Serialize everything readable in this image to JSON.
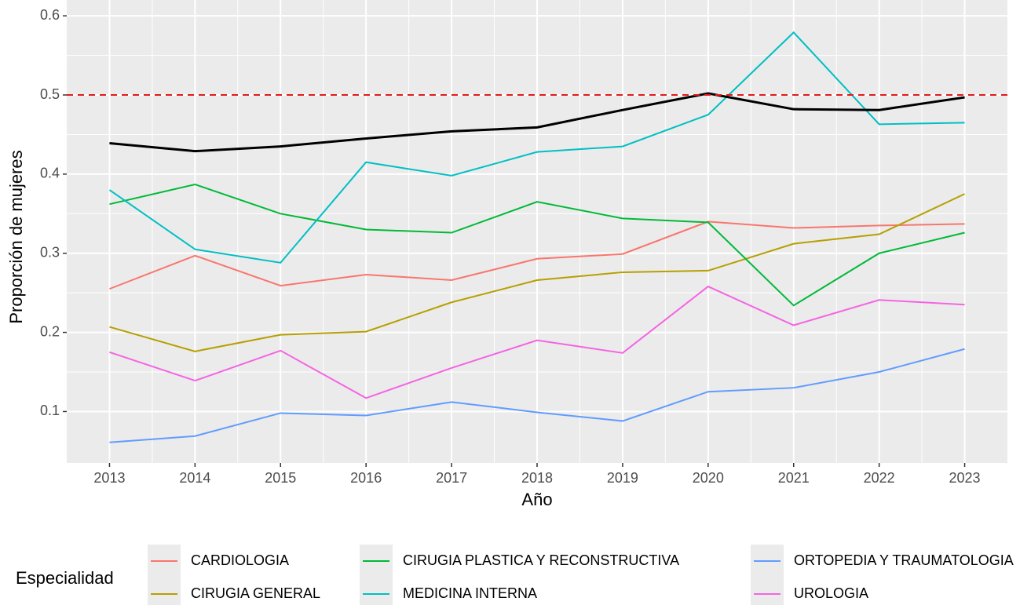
{
  "chart_data": {
    "type": "line",
    "x_label": "Año",
    "y_label": "Proporción de mujeres",
    "legend_title": "Especialidad",
    "x": [
      2013,
      2014,
      2015,
      2016,
      2017,
      2018,
      2019,
      2020,
      2021,
      2022,
      2023
    ],
    "xlim": [
      2012.5,
      2023.5
    ],
    "xticks": [
      2013,
      2014,
      2015,
      2016,
      2017,
      2018,
      2019,
      2020,
      2021,
      2022,
      2023
    ],
    "ylim": [
      0.035,
      0.62
    ],
    "yticks": [
      0.1,
      0.2,
      0.3,
      0.4,
      0.5,
      0.6
    ],
    "grid": true,
    "legend": "bottom",
    "hline": {
      "value": 0.5,
      "color": "#e31a1c"
    },
    "series": [
      {
        "name": "CARDIOLOGIA",
        "color": "#F8766D",
        "values": [
          0.255,
          0.297,
          0.259,
          0.273,
          0.266,
          0.293,
          0.299,
          0.34,
          0.332,
          0.335,
          0.337
        ]
      },
      {
        "name": "CIRUGIA GENERAL",
        "color": "#B79F00",
        "values": [
          0.207,
          0.176,
          0.197,
          0.201,
          0.238,
          0.266,
          0.276,
          0.278,
          0.312,
          0.324,
          0.375
        ]
      },
      {
        "name": "CIRUGIA PLASTICA Y RECONSTRUCTIVA",
        "color": "#00BA38",
        "values": [
          0.362,
          0.387,
          0.35,
          0.33,
          0.326,
          0.365,
          0.344,
          0.339,
          0.234,
          0.3,
          0.326
        ]
      },
      {
        "name": "MEDICINA INTERNA",
        "color": "#00BFC4",
        "values": [
          0.38,
          0.305,
          0.288,
          0.415,
          0.398,
          0.428,
          0.435,
          0.475,
          0.579,
          0.463,
          0.465
        ]
      },
      {
        "name": "ORTOPEDIA Y TRAUMATOLOGIA",
        "color": "#619CFF",
        "values": [
          0.061,
          0.069,
          0.098,
          0.095,
          0.112,
          0.099,
          0.088,
          0.125,
          0.13,
          0.15,
          0.179
        ]
      },
      {
        "name": "UROLOGIA",
        "color": "#F564E3",
        "values": [
          0.175,
          0.139,
          0.177,
          0.117,
          0.155,
          0.19,
          0.174,
          0.258,
          0.209,
          0.241,
          0.235
        ]
      },
      {
        "color": "#000000",
        "values": [
          0.439,
          0.429,
          0.435,
          0.445,
          0.454,
          0.459,
          0.481,
          0.502,
          0.482,
          0.481,
          0.497
        ]
      }
    ]
  }
}
